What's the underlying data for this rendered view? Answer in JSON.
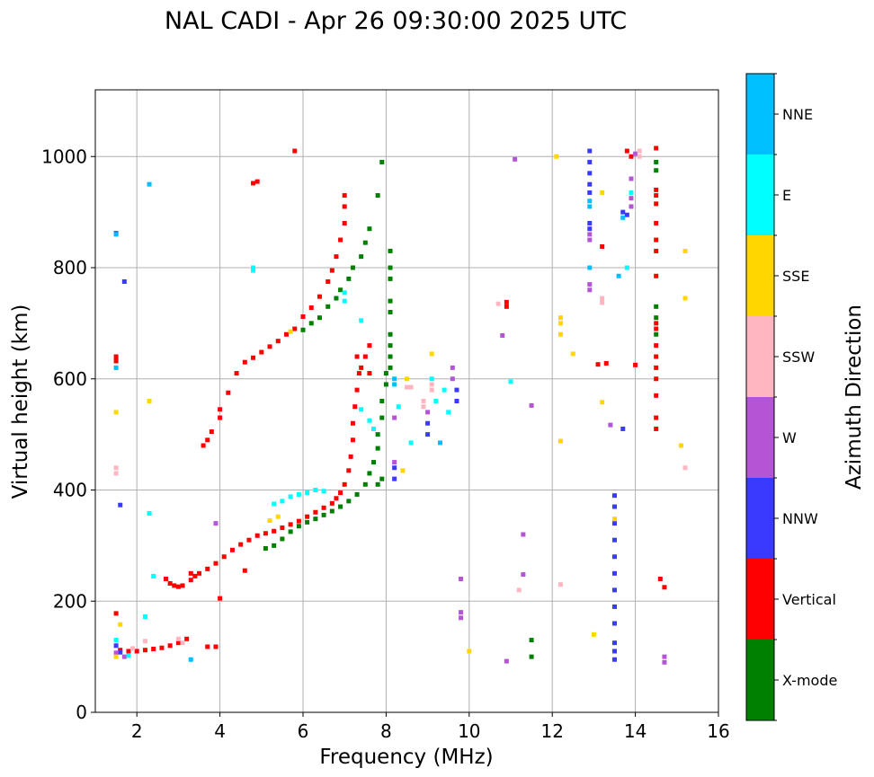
{
  "chart_data": {
    "type": "scatter",
    "title": "NAL CADI - Apr 26 09:30:00 2025 UTC",
    "xlabel": "Frequency (MHz)",
    "ylabel": "Virtual height (km)",
    "xlim": [
      1,
      16
    ],
    "ylim": [
      0,
      1120
    ],
    "xticks": [
      2,
      4,
      6,
      8,
      10,
      12,
      14,
      16
    ],
    "yticks": [
      0,
      200,
      400,
      600,
      800,
      1000
    ],
    "grid": true,
    "colorbar": {
      "label": "Azimuth Direction",
      "entries": [
        {
          "name": "X-mode",
          "color": "#008000"
        },
        {
          "name": "Vertical",
          "color": "#ff0000"
        },
        {
          "name": "NNW",
          "color": "#3a3aff"
        },
        {
          "name": "W",
          "color": "#b455d6"
        },
        {
          "name": "SSW",
          "color": "#ffb6c1"
        },
        {
          "name": "SSE",
          "color": "#ffd700"
        },
        {
          "name": "E",
          "color": "#00ffff"
        },
        {
          "name": "NNE",
          "color": "#00bfff"
        }
      ]
    },
    "series": [
      {
        "name": "Vertical",
        "color": "#ff0000",
        "points": [
          [
            1.6,
            112
          ],
          [
            1.8,
            110
          ],
          [
            2.0,
            110
          ],
          [
            2.2,
            112
          ],
          [
            2.4,
            114
          ],
          [
            2.6,
            116
          ],
          [
            2.8,
            120
          ],
          [
            3.0,
            125
          ],
          [
            3.2,
            132
          ],
          [
            2.7,
            240
          ],
          [
            2.8,
            232
          ],
          [
            2.9,
            228
          ],
          [
            3.0,
            226
          ],
          [
            3.1,
            228
          ],
          [
            3.3,
            238
          ],
          [
            3.5,
            250
          ],
          [
            3.7,
            258
          ],
          [
            3.9,
            268
          ],
          [
            4.1,
            280
          ],
          [
            4.3,
            292
          ],
          [
            4.5,
            302
          ],
          [
            4.7,
            310
          ],
          [
            4.9,
            318
          ],
          [
            5.1,
            322
          ],
          [
            5.3,
            326
          ],
          [
            5.5,
            332
          ],
          [
            5.7,
            338
          ],
          [
            5.9,
            344
          ],
          [
            6.1,
            352
          ],
          [
            6.3,
            360
          ],
          [
            6.5,
            368
          ],
          [
            6.7,
            376
          ],
          [
            6.8,
            385
          ],
          [
            6.9,
            395
          ],
          [
            7.0,
            410
          ],
          [
            7.1,
            435
          ],
          [
            7.15,
            460
          ],
          [
            7.2,
            490
          ],
          [
            7.2,
            520
          ],
          [
            7.25,
            550
          ],
          [
            7.3,
            580
          ],
          [
            7.35,
            610
          ],
          [
            7.3,
            640
          ],
          [
            3.6,
            480
          ],
          [
            3.7,
            490
          ],
          [
            3.8,
            505
          ],
          [
            4.0,
            530
          ],
          [
            4.0,
            545
          ],
          [
            4.2,
            575
          ],
          [
            4.4,
            610
          ],
          [
            4.6,
            630
          ],
          [
            4.8,
            638
          ],
          [
            5.0,
            648
          ],
          [
            5.2,
            658
          ],
          [
            5.4,
            668
          ],
          [
            5.6,
            680
          ],
          [
            5.8,
            690
          ],
          [
            6.0,
            712
          ],
          [
            6.2,
            728
          ],
          [
            6.4,
            748
          ],
          [
            6.6,
            775
          ],
          [
            6.7,
            795
          ],
          [
            6.8,
            820
          ],
          [
            6.9,
            850
          ],
          [
            7.0,
            880
          ],
          [
            7.0,
            910
          ],
          [
            7.0,
            930
          ],
          [
            5.8,
            1010
          ],
          [
            4.9,
            955
          ],
          [
            4.8,
            952
          ],
          [
            7.6,
            660
          ],
          [
            7.5,
            640
          ],
          [
            7.4,
            620
          ],
          [
            7.6,
            610
          ],
          [
            1.5,
            632
          ],
          [
            1.5,
            640
          ],
          [
            3.3,
            250
          ],
          [
            3.4,
            245
          ],
          [
            4.6,
            255
          ],
          [
            4.0,
            205
          ],
          [
            1.5,
            178
          ],
          [
            3.7,
            118
          ],
          [
            3.9,
            118
          ],
          [
            10.9,
            738
          ],
          [
            10.9,
            730
          ],
          [
            13.3,
            628
          ],
          [
            13.1,
            626
          ],
          [
            14.0,
            625
          ],
          [
            13.2,
            838
          ],
          [
            14.6,
            240
          ],
          [
            14.7,
            225
          ],
          [
            14.5,
            1015
          ],
          [
            14.5,
            940
          ],
          [
            14.5,
            930
          ],
          [
            14.5,
            915
          ],
          [
            14.5,
            880
          ],
          [
            14.5,
            850
          ],
          [
            14.5,
            830
          ],
          [
            14.5,
            785
          ],
          [
            14.5,
            700
          ],
          [
            14.5,
            690
          ],
          [
            14.5,
            660
          ],
          [
            14.5,
            640
          ],
          [
            14.5,
            620
          ],
          [
            14.5,
            600
          ],
          [
            14.5,
            570
          ],
          [
            14.5,
            530
          ],
          [
            14.5,
            510
          ],
          [
            13.8,
            1010
          ],
          [
            13.9,
            1000
          ]
        ]
      },
      {
        "name": "X-mode",
        "color": "#008000",
        "points": [
          [
            5.1,
            295
          ],
          [
            5.3,
            300
          ],
          [
            5.5,
            312
          ],
          [
            5.7,
            325
          ],
          [
            5.9,
            335
          ],
          [
            6.1,
            342
          ],
          [
            6.3,
            348
          ],
          [
            6.5,
            355
          ],
          [
            6.7,
            362
          ],
          [
            6.9,
            370
          ],
          [
            7.1,
            380
          ],
          [
            7.3,
            392
          ],
          [
            7.5,
            410
          ],
          [
            7.6,
            430
          ],
          [
            7.7,
            450
          ],
          [
            7.8,
            475
          ],
          [
            7.8,
            500
          ],
          [
            7.9,
            530
          ],
          [
            7.9,
            560
          ],
          [
            8.0,
            590
          ],
          [
            8.0,
            610
          ],
          [
            8.1,
            640
          ],
          [
            6.0,
            688
          ],
          [
            6.2,
            700
          ],
          [
            6.4,
            710
          ],
          [
            6.6,
            730
          ],
          [
            6.8,
            745
          ],
          [
            6.9,
            760
          ],
          [
            7.1,
            780
          ],
          [
            7.2,
            800
          ],
          [
            7.4,
            820
          ],
          [
            7.5,
            845
          ],
          [
            7.6,
            870
          ],
          [
            7.8,
            930
          ],
          [
            7.9,
            990
          ],
          [
            8.1,
            830
          ],
          [
            8.1,
            800
          ],
          [
            8.1,
            780
          ],
          [
            8.1,
            740
          ],
          [
            8.1,
            720
          ],
          [
            8.1,
            680
          ],
          [
            8.1,
            660
          ],
          [
            8.1,
            640
          ],
          [
            8.1,
            620
          ],
          [
            7.8,
            410
          ],
          [
            7.9,
            420
          ],
          [
            11.5,
            100
          ],
          [
            11.5,
            130
          ],
          [
            14.5,
            990
          ],
          [
            14.5,
            975
          ],
          [
            14.5,
            730
          ],
          [
            14.5,
            710
          ],
          [
            14.5,
            680
          ]
        ]
      },
      {
        "name": "NNW",
        "color": "#3a3aff",
        "points": [
          [
            12.9,
            1010
          ],
          [
            12.9,
            990
          ],
          [
            12.9,
            970
          ],
          [
            12.9,
            950
          ],
          [
            12.9,
            935
          ],
          [
            12.9,
            870
          ],
          [
            12.9,
            880
          ],
          [
            13.5,
            390
          ],
          [
            13.5,
            370
          ],
          [
            13.5,
            340
          ],
          [
            13.5,
            310
          ],
          [
            13.5,
            280
          ],
          [
            13.5,
            250
          ],
          [
            13.5,
            220
          ],
          [
            13.5,
            190
          ],
          [
            13.5,
            160
          ],
          [
            13.5,
            125
          ],
          [
            13.5,
            110
          ],
          [
            13.5,
            95
          ],
          [
            13.7,
            510
          ],
          [
            13.7,
            900
          ],
          [
            13.8,
            895
          ],
          [
            9.0,
            520
          ],
          [
            9.0,
            500
          ],
          [
            1.5,
            862
          ],
          [
            1.6,
            373
          ],
          [
            1.7,
            775
          ],
          [
            8.2,
            440
          ],
          [
            8.2,
            420
          ],
          [
            9.7,
            580
          ],
          [
            9.7,
            560
          ],
          [
            1.5,
            120
          ],
          [
            1.6,
            108
          ]
        ]
      },
      {
        "name": "W",
        "color": "#b455d6",
        "points": [
          [
            12.9,
            770
          ],
          [
            12.9,
            760
          ],
          [
            12.9,
            860
          ],
          [
            12.9,
            850
          ],
          [
            13.4,
            517
          ],
          [
            14.0,
            1005
          ],
          [
            13.9,
            960
          ],
          [
            13.9,
            925
          ],
          [
            13.9,
            910
          ],
          [
            14.7,
            100
          ],
          [
            14.7,
            90
          ],
          [
            10.9,
            92
          ],
          [
            9.8,
            180
          ],
          [
            9.8,
            170
          ],
          [
            11.3,
            320
          ],
          [
            11.3,
            248
          ],
          [
            11.1,
            995
          ],
          [
            10.8,
            678
          ],
          [
            11.5,
            552
          ],
          [
            8.2,
            530
          ],
          [
            8.2,
            450
          ],
          [
            9.0,
            540
          ],
          [
            9.6,
            600
          ],
          [
            9.6,
            620
          ],
          [
            9.8,
            240
          ],
          [
            3.9,
            340
          ],
          [
            1.5,
            107
          ],
          [
            1.7,
            100
          ]
        ]
      },
      {
        "name": "SSW",
        "color": "#ffb6c1",
        "points": [
          [
            1.5,
            440
          ],
          [
            1.5,
            430
          ],
          [
            8.9,
            560
          ],
          [
            8.9,
            550
          ],
          [
            9.1,
            590
          ],
          [
            9.1,
            580
          ],
          [
            8.6,
            585
          ],
          [
            8.5,
            585
          ],
          [
            13.2,
            745
          ],
          [
            13.2,
            737
          ],
          [
            12.2,
            230
          ],
          [
            11.2,
            220
          ],
          [
            14.1,
            1010
          ],
          [
            14.1,
            1000
          ],
          [
            15.2,
            440
          ],
          [
            10.7,
            735
          ],
          [
            3.0,
            132
          ],
          [
            3.1,
            125
          ],
          [
            2.2,
            128
          ],
          [
            1.9,
            115
          ]
        ]
      },
      {
        "name": "SSE",
        "color": "#ffd700",
        "points": [
          [
            13.2,
            935
          ],
          [
            13.2,
            558
          ],
          [
            13.0,
            140
          ],
          [
            13.5,
            348
          ],
          [
            15.1,
            480
          ],
          [
            15.2,
            830
          ],
          [
            15.2,
            745
          ],
          [
            12.2,
            710
          ],
          [
            12.2,
            700
          ],
          [
            12.2,
            680
          ],
          [
            12.2,
            488
          ],
          [
            8.4,
            435
          ],
          [
            8.5,
            600
          ],
          [
            9.1,
            645
          ],
          [
            10.0,
            110
          ],
          [
            5.2,
            345
          ],
          [
            5.4,
            352
          ],
          [
            5.7,
            685
          ],
          [
            1.5,
            100
          ],
          [
            1.5,
            540
          ],
          [
            1.6,
            158
          ],
          [
            2.3,
            560
          ],
          [
            12.1,
            1000
          ],
          [
            12.5,
            645
          ]
        ]
      },
      {
        "name": "E",
        "color": "#00ffff",
        "points": [
          [
            4.8,
            800
          ],
          [
            4.8,
            795
          ],
          [
            5.3,
            375
          ],
          [
            5.5,
            380
          ],
          [
            5.7,
            388
          ],
          [
            5.9,
            392
          ],
          [
            6.1,
            395
          ],
          [
            6.3,
            400
          ],
          [
            6.5,
            398
          ],
          [
            7.4,
            545
          ],
          [
            7.6,
            525
          ],
          [
            7.7,
            510
          ],
          [
            8.3,
            550
          ],
          [
            9.1,
            600
          ],
          [
            9.2,
            560
          ],
          [
            9.4,
            580
          ],
          [
            9.5,
            540
          ],
          [
            13.8,
            800
          ],
          [
            13.9,
            935
          ],
          [
            11.0,
            595
          ],
          [
            2.3,
            358
          ],
          [
            2.4,
            245
          ],
          [
            2.2,
            172
          ],
          [
            1.5,
            130
          ],
          [
            1.8,
            102
          ],
          [
            7.4,
            705
          ],
          [
            7.0,
            740
          ],
          [
            7.0,
            755
          ],
          [
            8.6,
            485
          ]
        ]
      },
      {
        "name": "NNE",
        "color": "#00bfff",
        "points": [
          [
            12.9,
            920
          ],
          [
            12.9,
            910
          ],
          [
            12.9,
            800
          ],
          [
            13.6,
            785
          ],
          [
            13.7,
            890
          ],
          [
            1.5,
            620
          ],
          [
            1.5,
            860
          ],
          [
            2.3,
            950
          ],
          [
            9.3,
            485
          ],
          [
            3.3,
            95
          ],
          [
            8.2,
            600
          ],
          [
            8.2,
            590
          ]
        ]
      }
    ]
  }
}
